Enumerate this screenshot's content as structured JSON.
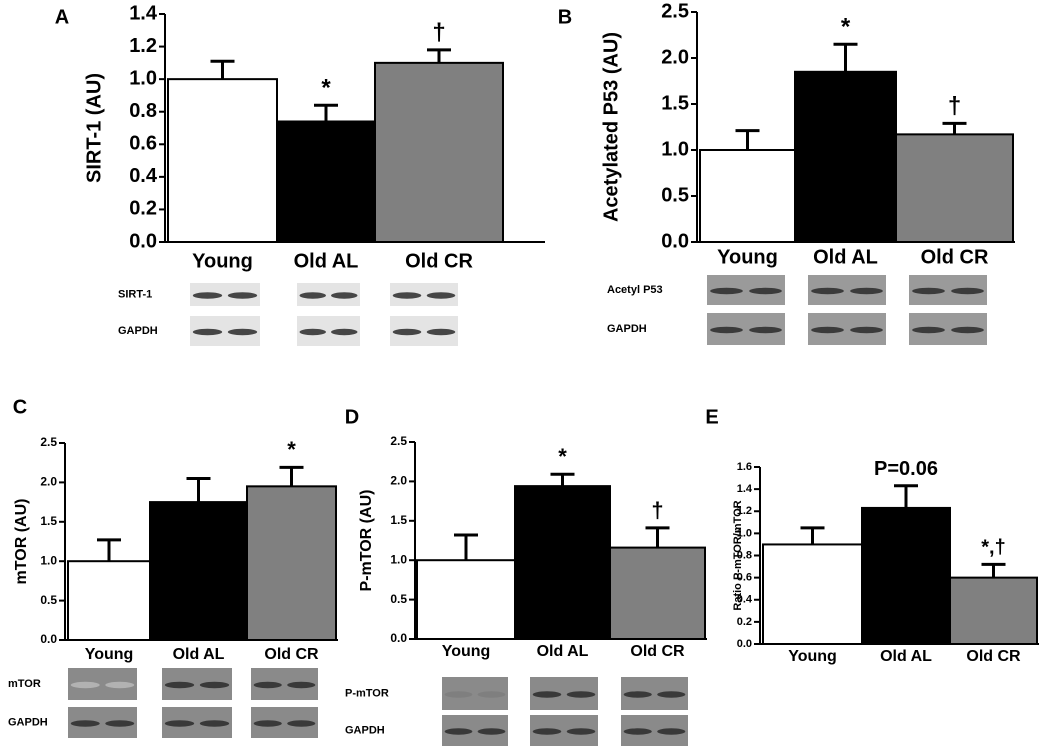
{
  "chart_data": [
    {
      "type": "bar",
      "panel": "A",
      "ylabel": "SIRT-1 (AU)",
      "categories": [
        "Young",
        "Old AL",
        "Old CR"
      ],
      "values": [
        1.0,
        0.74,
        1.1
      ],
      "errors": [
        0.11,
        0.1,
        0.08
      ],
      "colors": [
        "#ffffff",
        "#000000",
        "#808080"
      ],
      "annotations": [
        null,
        "*",
        "†"
      ],
      "ylim": [
        0,
        1.4
      ],
      "yticks": [
        {
          "value": 0,
          "label": "0.0"
        },
        {
          "value": 0.2,
          "label": "0.2"
        },
        {
          "value": 0.4,
          "label": "0.4"
        },
        {
          "value": 0.6,
          "label": "0.6"
        },
        {
          "value": 0.8,
          "label": "0.8"
        },
        {
          "value": 1.0,
          "label": "1.0"
        },
        {
          "value": 1.2,
          "label": "1.2"
        },
        {
          "value": 1.4,
          "label": "1.4"
        }
      ],
      "blot_labels": [
        "SIRT-1",
        "GAPDH"
      ]
    },
    {
      "type": "bar",
      "panel": "B",
      "ylabel": "Acetylated P53 (AU)",
      "categories": [
        "Young",
        "Old AL",
        "Old CR"
      ],
      "values": [
        1.0,
        1.85,
        1.17
      ],
      "errors": [
        0.21,
        0.3,
        0.12
      ],
      "colors": [
        "#ffffff",
        "#000000",
        "#808080"
      ],
      "annotations": [
        null,
        "*",
        "†"
      ],
      "ylim": [
        0,
        2.5
      ],
      "yticks": [
        {
          "value": 0,
          "label": "0.0"
        },
        {
          "value": 0.5,
          "label": "0.5"
        },
        {
          "value": 1.0,
          "label": "1.0"
        },
        {
          "value": 1.5,
          "label": "1.5"
        },
        {
          "value": 2.0,
          "label": "2.0"
        },
        {
          "value": 2.5,
          "label": "2.5"
        }
      ],
      "blot_labels": [
        "Acetyl P53",
        "GAPDH"
      ]
    },
    {
      "type": "bar",
      "panel": "C",
      "ylabel": "mTOR (AU)",
      "categories": [
        "Young",
        "Old AL",
        "Old CR"
      ],
      "values": [
        1.0,
        1.75,
        1.95
      ],
      "errors": [
        0.27,
        0.3,
        0.24
      ],
      "colors": [
        "#ffffff",
        "#000000",
        "#808080"
      ],
      "annotations": [
        null,
        null,
        "*"
      ],
      "ylim": [
        0,
        2.5
      ],
      "yticks": [
        {
          "value": 0,
          "label": "0.0"
        },
        {
          "value": 0.5,
          "label": "0.5"
        },
        {
          "value": 1.0,
          "label": "1.0"
        },
        {
          "value": 1.5,
          "label": "1.5"
        },
        {
          "value": 2.0,
          "label": "2.0"
        },
        {
          "value": 2.5,
          "label": "2.5"
        }
      ],
      "blot_labels": [
        "mTOR",
        "GAPDH"
      ]
    },
    {
      "type": "bar",
      "panel": "D",
      "ylabel": "P-mTOR (AU)",
      "categories": [
        "Young",
        "Old AL",
        "Old CR"
      ],
      "values": [
        1.0,
        1.94,
        1.16
      ],
      "errors": [
        0.32,
        0.15,
        0.25
      ],
      "colors": [
        "#ffffff",
        "#000000",
        "#808080"
      ],
      "annotations": [
        null,
        "*",
        "†"
      ],
      "ylim": [
        0,
        2.5
      ],
      "yticks": [
        {
          "value": 0,
          "label": "0.0"
        },
        {
          "value": 0.5,
          "label": "0.5"
        },
        {
          "value": 1.0,
          "label": "1.0"
        },
        {
          "value": 1.5,
          "label": "1.5"
        },
        {
          "value": 2.0,
          "label": "2.0"
        },
        {
          "value": 2.5,
          "label": "2.5"
        }
      ],
      "blot_labels": [
        "P-mTOR",
        "GAPDH"
      ]
    },
    {
      "type": "bar",
      "panel": "E",
      "ylabel": "Ratio P-mTOR/mTOR",
      "categories": [
        "Young",
        "Old AL",
        "Old CR"
      ],
      "values": [
        0.9,
        1.23,
        0.6
      ],
      "errors": [
        0.15,
        0.2,
        0.12
      ],
      "colors": [
        "#ffffff",
        "#000000",
        "#808080"
      ],
      "annotations": [
        null,
        "P=0.06",
        "*,†"
      ],
      "ylim": [
        0,
        1.6
      ],
      "yticks": [
        {
          "value": 0,
          "label": "0.0"
        },
        {
          "value": 0.2,
          "label": "0.2"
        },
        {
          "value": 0.4,
          "label": "0.4"
        },
        {
          "value": 0.6,
          "label": "0.6"
        },
        {
          "value": 0.8,
          "label": "0.8"
        },
        {
          "value": 1.0,
          "label": "1.0"
        },
        {
          "value": 1.2,
          "label": "1.2"
        },
        {
          "value": 1.4,
          "label": "1.4"
        },
        {
          "value": 1.6,
          "label": "1.6"
        }
      ]
    }
  ]
}
